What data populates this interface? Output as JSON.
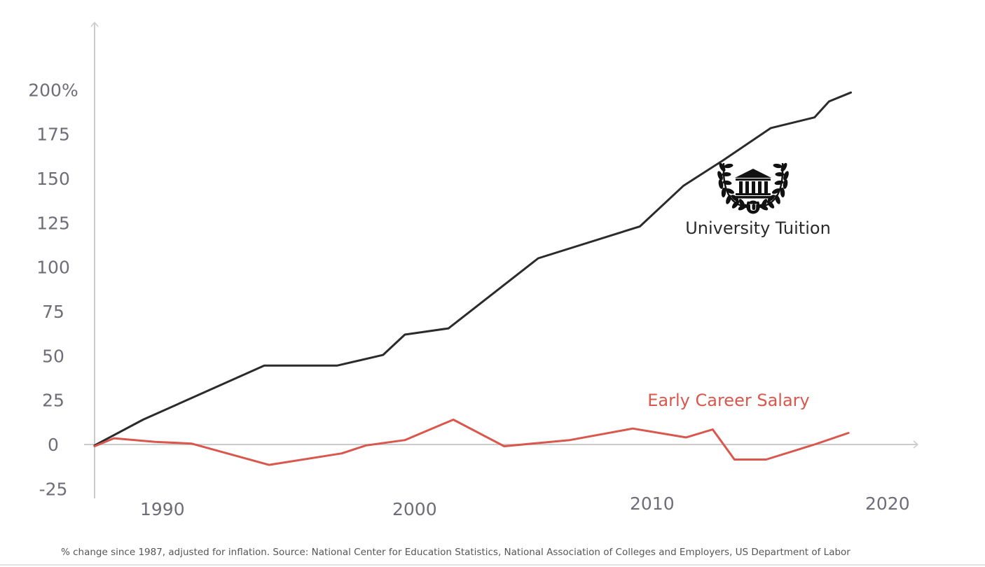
{
  "chart_data": {
    "type": "line",
    "title": "",
    "xlabel": "",
    "ylabel": "",
    "xlim": [
      1987,
      2021
    ],
    "ylim": [
      -30,
      240
    ],
    "x_ticks": [
      1990,
      2000,
      2010,
      2020
    ],
    "y_ticks": [
      {
        "value": 200,
        "label": "200%"
      },
      {
        "value": 175,
        "label": "175"
      },
      {
        "value": 150,
        "label": "150"
      },
      {
        "value": 125,
        "label": "125"
      },
      {
        "value": 100,
        "label": "100"
      },
      {
        "value": 75,
        "label": "75"
      },
      {
        "value": 50,
        "label": "50"
      },
      {
        "value": 25,
        "label": "25"
      },
      {
        "value": 0,
        "label": "0"
      },
      {
        "value": -25,
        "label": "-25"
      }
    ],
    "grid": false,
    "legend": "inline labels",
    "series": [
      {
        "name": "University Tuition",
        "color": "#2b2b2b",
        "icon": "university-laurel-icon",
        "icon_letter": "U",
        "points": [
          [
            1987,
            -0.5
          ],
          [
            1989,
            14
          ],
          [
            1994,
            44.5
          ],
          [
            1997,
            44.5
          ],
          [
            1998.9,
            50.5
          ],
          [
            1999.8,
            62
          ],
          [
            2001.6,
            65.5
          ],
          [
            2005.3,
            105
          ],
          [
            2009.5,
            123
          ],
          [
            2011.3,
            146
          ],
          [
            2012.9,
            160
          ],
          [
            2014.9,
            178.5
          ],
          [
            2016.7,
            184.5
          ],
          [
            2017.3,
            193.5
          ],
          [
            2018.2,
            198.5
          ]
        ]
      },
      {
        "name": "Early Career Salary",
        "color": "#d9574d",
        "points": [
          [
            1987,
            -1
          ],
          [
            1987.8,
            3.5
          ],
          [
            1989.5,
            1.5
          ],
          [
            1991,
            0.5
          ],
          [
            1994.2,
            -11.5
          ],
          [
            1997.2,
            -5
          ],
          [
            1998.2,
            -0.5
          ],
          [
            1999.8,
            2.5
          ],
          [
            2001.8,
            14
          ],
          [
            2003.9,
            -1
          ],
          [
            2006.6,
            2.5
          ],
          [
            2009.2,
            9
          ],
          [
            2011.4,
            4
          ],
          [
            2012.5,
            8.5
          ],
          [
            2013.4,
            -8.5
          ],
          [
            2014.7,
            -8.5
          ],
          [
            2016.7,
            0
          ],
          [
            2018.1,
            6.5
          ]
        ]
      }
    ],
    "note": "% change since 1987, adjusted for inflation. Source: National Center for Education Statistics, National Association of Colleges and Employers, US Department of Labor"
  }
}
